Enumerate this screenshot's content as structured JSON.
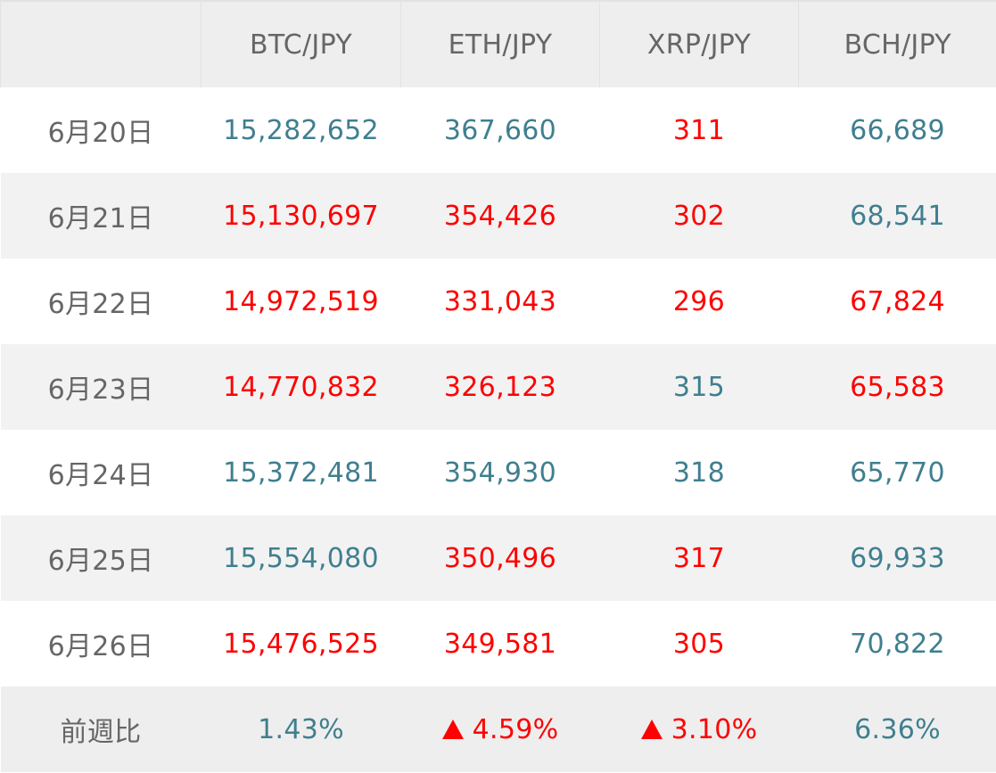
{
  "table": {
    "headers": [
      "",
      "BTC/JPY",
      "ETH/JPY",
      "XRP/JPY",
      "BCH/JPY"
    ],
    "rows": [
      {
        "date": "6月20日",
        "cells": [
          {
            "value": "15,282,652",
            "trend": "up"
          },
          {
            "value": "367,660",
            "trend": "up"
          },
          {
            "value": "311",
            "trend": "down"
          },
          {
            "value": "66,689",
            "trend": "up"
          }
        ]
      },
      {
        "date": "6月21日",
        "cells": [
          {
            "value": "15,130,697",
            "trend": "down"
          },
          {
            "value": "354,426",
            "trend": "down"
          },
          {
            "value": "302",
            "trend": "down"
          },
          {
            "value": "68,541",
            "trend": "up"
          }
        ]
      },
      {
        "date": "6月22日",
        "cells": [
          {
            "value": "14,972,519",
            "trend": "down"
          },
          {
            "value": "331,043",
            "trend": "down"
          },
          {
            "value": "296",
            "trend": "down"
          },
          {
            "value": "67,824",
            "trend": "down"
          }
        ]
      },
      {
        "date": "6月23日",
        "cells": [
          {
            "value": "14,770,832",
            "trend": "down"
          },
          {
            "value": "326,123",
            "trend": "down"
          },
          {
            "value": "315",
            "trend": "up"
          },
          {
            "value": "65,583",
            "trend": "down"
          }
        ]
      },
      {
        "date": "6月24日",
        "cells": [
          {
            "value": "15,372,481",
            "trend": "up"
          },
          {
            "value": "354,930",
            "trend": "up"
          },
          {
            "value": "318",
            "trend": "up"
          },
          {
            "value": "65,770",
            "trend": "up"
          }
        ]
      },
      {
        "date": "6月25日",
        "cells": [
          {
            "value": "15,554,080",
            "trend": "up"
          },
          {
            "value": "350,496",
            "trend": "down"
          },
          {
            "value": "317",
            "trend": "down"
          },
          {
            "value": "69,933",
            "trend": "up"
          }
        ]
      },
      {
        "date": "6月26日",
        "cells": [
          {
            "value": "15,476,525",
            "trend": "down"
          },
          {
            "value": "349,581",
            "trend": "down"
          },
          {
            "value": "305",
            "trend": "down"
          },
          {
            "value": "70,822",
            "trend": "up"
          }
        ]
      }
    ],
    "summary": {
      "label": "前週比",
      "cells": [
        {
          "value": "1.43%",
          "trend": "up",
          "triangle": false
        },
        {
          "value": "4.59%",
          "trend": "down",
          "triangle": true
        },
        {
          "value": "3.10%",
          "trend": "down",
          "triangle": true
        },
        {
          "value": "6.36%",
          "trend": "up",
          "triangle": false
        }
      ]
    }
  },
  "colors": {
    "label_text": "#666666",
    "up_text": "#3f7f8f",
    "down_text": "#ff0000",
    "header_bg": "#eeeeee",
    "alt_row_bg": "#f2f2f2"
  }
}
